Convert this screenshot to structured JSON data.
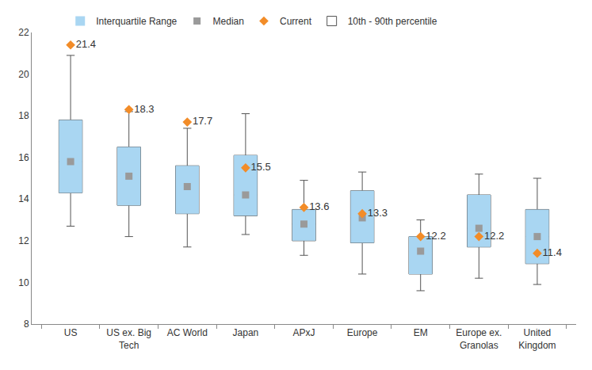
{
  "chart_data": {
    "type": "box",
    "categories": [
      "US",
      "US ex. Big Tech",
      "AC World",
      "Japan",
      "APxJ",
      "Europe",
      "EM",
      "Europe ex. Granolas",
      "United Kingdom"
    ],
    "series": [
      {
        "name": "Interquartile Range",
        "type": "box",
        "color": "#a9d6f2",
        "q1": [
          14.3,
          13.7,
          13.3,
          13.2,
          12.0,
          11.9,
          10.4,
          11.7,
          10.9
        ],
        "q3": [
          17.8,
          16.5,
          15.6,
          16.1,
          13.5,
          14.4,
          12.2,
          14.2,
          13.5
        ]
      },
      {
        "name": "Median",
        "type": "scatter",
        "marker": "square",
        "color": "#9a9a9a",
        "values": [
          15.8,
          15.1,
          14.6,
          14.2,
          12.8,
          13.1,
          11.5,
          12.6,
          12.2
        ]
      },
      {
        "name": "Current",
        "type": "scatter",
        "marker": "diamond",
        "color": "#f28c28",
        "data_labels": true,
        "values": [
          21.4,
          18.3,
          17.7,
          15.5,
          13.6,
          13.3,
          12.2,
          12.2,
          11.4
        ]
      },
      {
        "name": "10th - 90th percentile",
        "type": "whisker",
        "color": "#555555",
        "low": [
          12.7,
          12.2,
          11.7,
          12.3,
          11.3,
          10.4,
          9.6,
          10.2,
          9.9
        ],
        "high": [
          20.9,
          18.2,
          17.4,
          18.1,
          14.9,
          15.3,
          13.0,
          15.2,
          15.0
        ]
      }
    ],
    "ylim": [
      8,
      22
    ],
    "yticks": [
      8,
      10,
      12,
      14,
      16,
      18,
      20,
      22
    ],
    "grid": false,
    "legend": "top"
  }
}
